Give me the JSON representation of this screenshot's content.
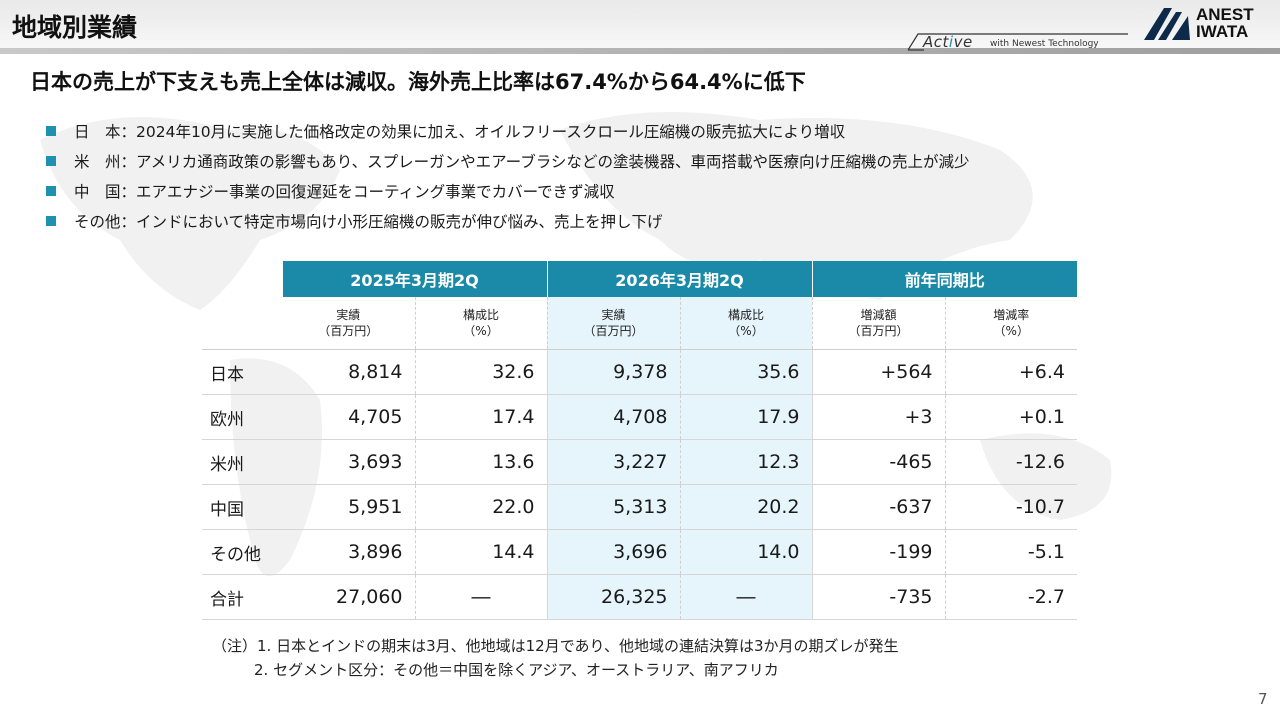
{
  "header": {
    "title": "地域別業績",
    "tagline_main_a": "Act",
    "tagline_main_b": "i",
    "tagline_main_c": "ve",
    "tagline_sub": "with Newest Technology",
    "brand_line1": "ANEST",
    "brand_line2": "IWATA"
  },
  "headline": "日本の売上が下支えも売上全体は減収。海外売上比率は67.4%から64.4%に低下",
  "bullets": [
    "日　本：2024年10月に実施した価格改定の効果に加え、オイルフリースクロール圧縮機の販売拡大により増収",
    "米　州：アメリカ通商政策の影響もあり、スプレーガンやエアーブラシなどの塗装機器、車両搭載や医療向け圧縮機の売上が減少",
    "中　国：エアエナジー事業の回復遅延をコーティング事業でカバーできず減収",
    "その他：インドにおいて特定市場向け小形圧縮機の販売が伸び悩み、売上を押し下げ"
  ],
  "table": {
    "groups": [
      "2025年3月期2Q",
      "2026年3月期2Q",
      "前年同期比"
    ],
    "subheaders": [
      {
        "line1": "実績",
        "line2": "（百万円）"
      },
      {
        "line1": "構成比",
        "line2": "（%）"
      },
      {
        "line1": "実績",
        "line2": "（百万円）"
      },
      {
        "line1": "構成比",
        "line2": "（%）"
      },
      {
        "line1": "増減額",
        "line2": "（百万円）"
      },
      {
        "line1": "増減率",
        "line2": "（%）"
      }
    ],
    "rows": [
      {
        "region": "日本",
        "v": [
          "8,814",
          "32.6",
          "9,378",
          "35.6",
          "+564",
          "+6.4"
        ]
      },
      {
        "region": "欧州",
        "v": [
          "4,705",
          "17.4",
          "4,708",
          "17.9",
          "+3",
          "+0.1"
        ]
      },
      {
        "region": "米州",
        "v": [
          "3,693",
          "13.6",
          "3,227",
          "12.3",
          "-465",
          "-12.6"
        ]
      },
      {
        "region": "中国",
        "v": [
          "5,951",
          "22.0",
          "5,313",
          "20.2",
          "-637",
          "-10.7"
        ]
      },
      {
        "region": "その他",
        "v": [
          "3,896",
          "14.4",
          "3,696",
          "14.0",
          "-199",
          "-5.1"
        ]
      },
      {
        "region": "合計",
        "v": [
          "27,060",
          "―",
          "26,325",
          "―",
          "-735",
          "-2.7"
        ]
      }
    ]
  },
  "notes": {
    "line1": "（注）1. 日本とインドの期末は3月、他地域は12月であり、他地域の連結決算は3か月の期ズレが発生",
    "line2": "2. セグメント区分：その他＝中国を除くアジア、オーストラリア、南アフリカ"
  },
  "page_number": "7",
  "colors": {
    "accent": "#1a8aa8",
    "highlight_column": "#e5f5fb",
    "bullet_square": "#1e90b0"
  }
}
